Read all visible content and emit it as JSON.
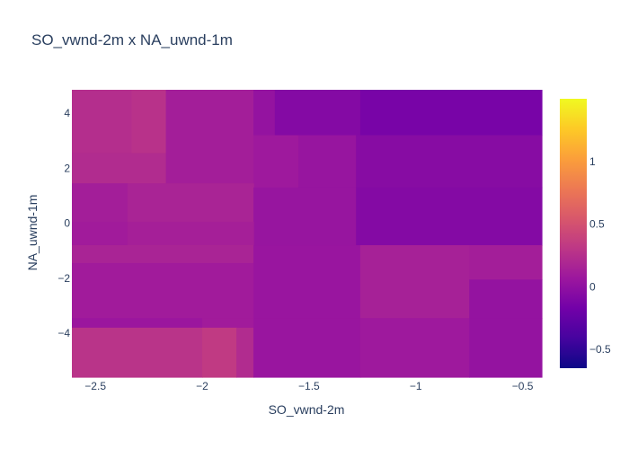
{
  "chart_data": {
    "type": "heatmap",
    "title": "SO_vwnd-2m x NA_uwnd-1m",
    "xlabel": "SO_vwnd-2m",
    "ylabel": "NA_uwnd-1m",
    "xlim": [
      -2.61,
      -0.41
    ],
    "ylim": [
      -5.6,
      4.85
    ],
    "x_ticks": [
      -2.5,
      -2,
      -1.5,
      -1,
      -0.5
    ],
    "x_tick_labels": [
      "−2.5",
      "−2",
      "−1.5",
      "−1",
      "−0.5"
    ],
    "y_ticks": [
      4,
      2,
      0,
      -2,
      -4
    ],
    "y_tick_labels": [
      "4",
      "2",
      "0",
      "−2",
      "−4"
    ],
    "colorbar": {
      "range": [
        -0.65,
        1.5
      ],
      "ticks": [
        1,
        0.5,
        0,
        -0.5
      ],
      "tick_labels": [
        "1",
        "0.5",
        "0",
        "−0.5"
      ],
      "colorscale": [
        "#0d0887",
        "#46039f",
        "#7201a8",
        "#9c179e",
        "#bd3786",
        "#d8576b",
        "#ed7953",
        "#fb9f3a",
        "#fdca26",
        "#f0f921"
      ]
    },
    "cells": [
      {
        "x0": -2.61,
        "x1": -2.33,
        "y0": 2.55,
        "y1": 4.85,
        "value": 0.24
      },
      {
        "x0": -2.33,
        "x1": -2.17,
        "y0": 2.55,
        "y1": 4.85,
        "value": 0.27
      },
      {
        "x0": -2.61,
        "x1": -2.17,
        "y0": 1.45,
        "y1": 2.55,
        "value": 0.22
      },
      {
        "x0": -2.17,
        "x1": -1.76,
        "y0": 1.45,
        "y1": 4.85,
        "value": 0.12
      },
      {
        "x0": -1.76,
        "x1": -1.66,
        "y0": 3.2,
        "y1": 4.85,
        "value": 0.02
      },
      {
        "x0": -1.66,
        "x1": -1.26,
        "y0": 3.2,
        "y1": 4.85,
        "value": -0.07
      },
      {
        "x0": -1.26,
        "x1": -0.41,
        "y0": 3.2,
        "y1": 4.85,
        "value": -0.14
      },
      {
        "x0": -1.76,
        "x1": -1.55,
        "y0": 1.3,
        "y1": 3.2,
        "value": 0.08
      },
      {
        "x0": -1.55,
        "x1": -1.28,
        "y0": 1.3,
        "y1": 3.2,
        "value": 0.04
      },
      {
        "x0": -1.28,
        "x1": -0.41,
        "y0": 1.3,
        "y1": 3.2,
        "value": -0.05
      },
      {
        "x0": -2.61,
        "x1": -2.35,
        "y0": 0.05,
        "y1": 1.45,
        "value": 0.12
      },
      {
        "x0": -2.35,
        "x1": -1.76,
        "y0": 0.05,
        "y1": 1.45,
        "value": 0.16
      },
      {
        "x0": -1.76,
        "x1": -1.28,
        "y0": -0.8,
        "y1": 1.3,
        "value": 0.04
      },
      {
        "x0": -1.28,
        "x1": -0.41,
        "y0": -0.8,
        "y1": 1.3,
        "value": -0.07
      },
      {
        "x0": -2.61,
        "x1": -2.35,
        "y0": -0.8,
        "y1": 0.05,
        "value": 0.1
      },
      {
        "x0": -2.35,
        "x1": -1.76,
        "y0": -0.8,
        "y1": 0.05,
        "value": 0.13
      },
      {
        "x0": -2.61,
        "x1": -1.76,
        "y0": -1.45,
        "y1": -0.8,
        "value": 0.16
      },
      {
        "x0": -2.61,
        "x1": -1.76,
        "y0": -3.45,
        "y1": -1.45,
        "value": 0.1
      },
      {
        "x0": -1.76,
        "x1": -1.26,
        "y0": -3.45,
        "y1": -0.8,
        "value": 0.05
      },
      {
        "x0": -1.26,
        "x1": -0.75,
        "y0": -3.45,
        "y1": -0.8,
        "value": 0.14
      },
      {
        "x0": -0.75,
        "x1": -0.41,
        "y0": -2.05,
        "y1": -0.8,
        "value": 0.12
      },
      {
        "x0": -0.75,
        "x1": -0.41,
        "y0": -3.45,
        "y1": -2.05,
        "value": 0.02
      },
      {
        "x0": -2.61,
        "x1": -2.0,
        "y0": -3.8,
        "y1": -3.45,
        "value": 0.06
      },
      {
        "x0": -2.0,
        "x1": -1.76,
        "y0": -3.8,
        "y1": -3.45,
        "value": 0.1
      },
      {
        "x0": -2.61,
        "x1": -2.0,
        "y0": -5.6,
        "y1": -3.8,
        "value": 0.28
      },
      {
        "x0": -2.0,
        "x1": -1.84,
        "y0": -5.6,
        "y1": -3.8,
        "value": 0.33
      },
      {
        "x0": -1.84,
        "x1": -1.76,
        "y0": -5.6,
        "y1": -3.8,
        "value": 0.22
      },
      {
        "x0": -1.76,
        "x1": -1.26,
        "y0": -5.6,
        "y1": -3.45,
        "value": 0.05
      },
      {
        "x0": -1.26,
        "x1": -0.75,
        "y0": -5.6,
        "y1": -3.45,
        "value": 0.08
      },
      {
        "x0": -0.75,
        "x1": -0.41,
        "y0": -5.6,
        "y1": -3.45,
        "value": 0.02
      }
    ]
  }
}
